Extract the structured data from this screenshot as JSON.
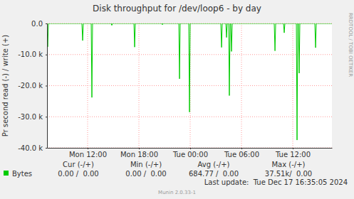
{
  "chart_data": {
    "type": "line",
    "title": "Disk throughput for /dev/loop6 - by day",
    "ylabel": "Pr second read (-) / write (+)",
    "x": [
      7.25,
      7.33,
      7.42,
      11.33,
      11.42,
      11.5,
      12.42,
      12.5,
      12.58,
      14.75,
      14.83,
      14.92,
      17.42,
      17.5,
      17.58,
      20.67,
      20.75,
      20.83,
      22.67,
      22.75,
      22.83,
      23.83,
      23.92,
      24.0,
      27.58,
      27.67,
      27.75,
      28.17,
      28.25,
      28.33,
      28.5,
      28.58,
      28.67,
      28.75,
      28.83,
      28.92,
      33.83,
      33.92,
      34.0,
      34.92,
      35.0,
      35.08,
      36.42,
      36.5,
      36.58,
      36.67,
      36.75,
      36.83,
      38.58,
      38.67,
      38.75,
      40.58
    ],
    "series": [
      {
        "name": "Bytes",
        "color": "#00cc00",
        "values": [
          0,
          -7500,
          0,
          0,
          -5500,
          0,
          0,
          -23800,
          0,
          0,
          -600,
          0,
          0,
          -7600,
          0,
          0,
          -400,
          0,
          0,
          -17800,
          0,
          0,
          -28500,
          0,
          0,
          -7700,
          0,
          0,
          -4500,
          0,
          0,
          -23200,
          0,
          0,
          -9000,
          0,
          0,
          -8800,
          0,
          0,
          -3000,
          0,
          0,
          -37500,
          0,
          0,
          -16000,
          0,
          0,
          -7800,
          0,
          0
        ]
      }
    ],
    "xlim": [
      7.25,
      40.58
    ],
    "xticks": [
      {
        "value": 12,
        "label": "Mon 12:00"
      },
      {
        "value": 18,
        "label": "Mon 18:00"
      },
      {
        "value": 24,
        "label": "Tue 00:00"
      },
      {
        "value": 30,
        "label": "Tue 06:00"
      },
      {
        "value": 36,
        "label": "Tue 12:00"
      }
    ],
    "ylim": [
      -40000,
      0
    ],
    "yticks": [
      {
        "value": 0,
        "label": "0.0"
      },
      {
        "value": -10000,
        "label": "-10.0 k"
      },
      {
        "value": -20000,
        "label": "-20.0 k"
      },
      {
        "value": -30000,
        "label": "-30.0 k"
      },
      {
        "value": -40000,
        "label": "-40.0 k"
      }
    ],
    "grid": true,
    "stats": {
      "headers": [
        "Cur (-/+)",
        "Min (-/+)",
        "Avg (-/+)",
        "Max (-/+)"
      ],
      "values": [
        "0.00 /  0.00",
        "0.00 /  0.00",
        "684.77 /  0.00",
        "37.51k/  0.00"
      ]
    },
    "annotations": [
      "Last update:  Tue Dec 17 16:35:05 2024",
      "Munin 2.0.33-1",
      "RRDTOOL / TOBI OETIKER"
    ]
  }
}
